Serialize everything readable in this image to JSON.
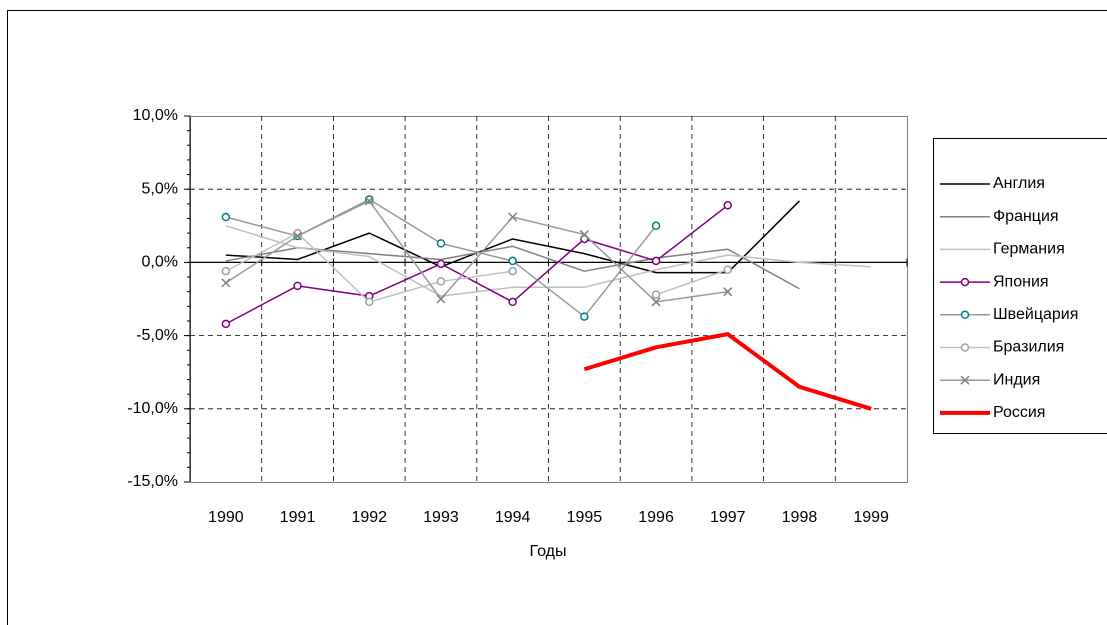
{
  "chart_data": {
    "type": "line",
    "x_label": "Годы",
    "categories": [
      "1990",
      "1991",
      "1992",
      "1993",
      "1994",
      "1995",
      "1996",
      "1997",
      "1998",
      "1999"
    ],
    "ylim": [
      -15,
      10
    ],
    "yticks": [
      {
        "value": -15,
        "label": "-15,0%"
      },
      {
        "value": -10,
        "label": "-10,0%"
      },
      {
        "value": -5,
        "label": "-5,0%"
      },
      {
        "value": 0,
        "label": "0,0%"
      },
      {
        "value": 5,
        "label": "5,0%"
      },
      {
        "value": 10,
        "label": "10,0%"
      }
    ],
    "grid": true,
    "legend": "right",
    "series": [
      {
        "name": "Англия",
        "color": "#000000",
        "values": [
          0.5,
          0.2,
          2.0,
          -0.3,
          1.6,
          0.6,
          -0.7,
          -0.7,
          4.2,
          null
        ]
      },
      {
        "name": "Франция",
        "color": "#808080",
        "values": [
          0.1,
          1.0,
          0.6,
          0.2,
          1.1,
          -0.6,
          0.3,
          0.9,
          -1.8,
          null
        ]
      },
      {
        "name": "Германия",
        "color": "#c0c0c0",
        "values": [
          2.5,
          1.0,
          0.4,
          -2.3,
          -1.7,
          -1.7,
          -0.5,
          0.5,
          0.0,
          -0.3
        ]
      },
      {
        "name": "Япония",
        "color": "#800080",
        "marker": "circle",
        "values": [
          -4.2,
          -1.6,
          -2.3,
          -0.1,
          -2.7,
          1.6,
          0.1,
          3.9,
          null,
          null
        ]
      },
      {
        "name": "Швейцария",
        "color": "#999999",
        "marker_color": "#008080",
        "marker": "circle",
        "values": [
          3.1,
          1.8,
          4.3,
          1.3,
          0.1,
          -3.7,
          2.5,
          null,
          null,
          null
        ]
      },
      {
        "name": "Бразилия",
        "color": "#c0c0c0",
        "marker_color": "#a0a0a0",
        "marker": "circle",
        "values": [
          -0.6,
          2.0,
          -2.7,
          -1.3,
          -0.6,
          null,
          -2.2,
          -0.5,
          null,
          null
        ]
      },
      {
        "name": "Индия",
        "color": "#999999",
        "marker_color": "#808080",
        "marker": "x",
        "values": [
          -1.4,
          1.8,
          4.2,
          -2.5,
          3.1,
          1.9,
          -2.7,
          -2.0,
          null,
          null
        ]
      },
      {
        "name": "Россия",
        "color": "#ff0000",
        "width": 4,
        "values": [
          null,
          null,
          null,
          null,
          null,
          -7.3,
          -5.8,
          -4.9,
          -8.5,
          -10.0
        ]
      }
    ]
  }
}
